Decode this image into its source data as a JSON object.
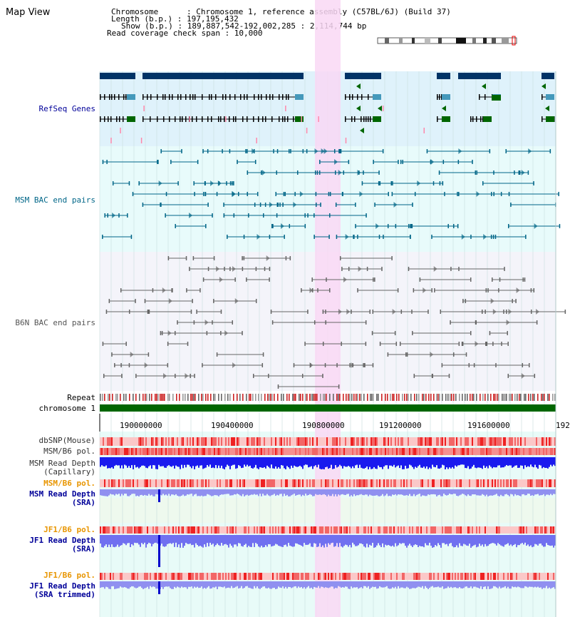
{
  "title": "Map View",
  "info": {
    "chromosome": "Chromosome      : Chromosome 1, reference assembly (C57BL/6J) (Build 37)",
    "length": "Length (b.p.) : 197,195,432",
    "show": "Show (b.p.) : 189,887,542-192,002,285 : 2,114,744 bp",
    "coverage": "Read coverage check span : 10,000"
  },
  "tracks": {
    "refseq": "RefSeq Genes",
    "msm_bac": "MSM BAC end pairs",
    "b6n_bac": "B6N BAC end pairs",
    "repeat": "Repeat",
    "chromosome": "chromosome 1",
    "dbsnp": "dbSNP(Mouse)",
    "msm_b6_pol": "MSM/B6 pol.",
    "msm_depth_cap_1": "MSM Read Depth",
    "msm_depth_cap_2": "(Capillary)",
    "msm_b6_pol_2": "MSM/B6 pol.",
    "msm_depth_sra_1": "MSM Read Depth",
    "msm_depth_sra_2": "(SRA)",
    "jf1_b6_pol": "JF1/B6 pol.",
    "jf1_depth_sra_1": "JF1 Read Depth",
    "jf1_depth_sra_2": "(SRA)",
    "jf1_b6_pol_2": "JF1/B6 pol.",
    "jf1_depth_trim_1": "JF1 Read Depth",
    "jf1_depth_trim_2": "(SRA trimmed)"
  },
  "axis": {
    "ticks": [
      "190000000",
      "190400000",
      "190800000",
      "191200000",
      "191600000",
      "192"
    ]
  },
  "colors": {
    "refseq_label": "#000099",
    "msm_label": "#006688",
    "b6n_label": "#555555",
    "pol_label": "#e89500",
    "depth_label": "#000099",
    "highlight": "#f9d8f4",
    "chromosome_bar": "#006600",
    "depth_blue": "#0000ee",
    "depth_light": "#8888ff"
  }
}
